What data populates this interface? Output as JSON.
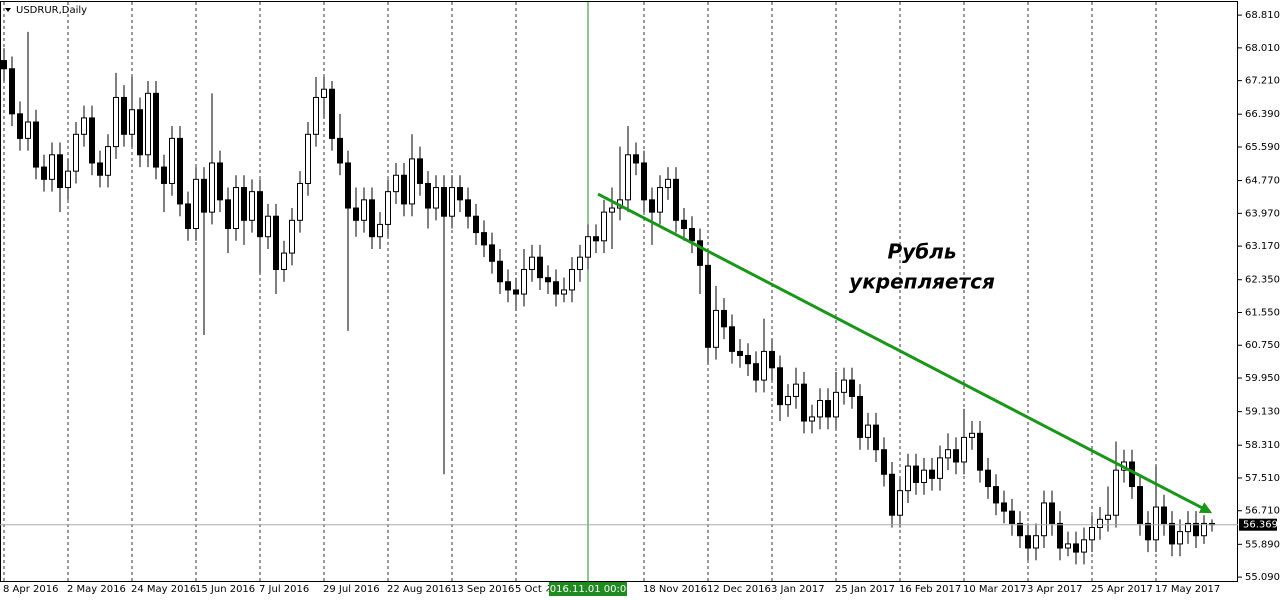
{
  "chart_data": {
    "type": "candlestick",
    "title": "USDRUR,Daily",
    "categories": [
      "8 Apr 2016",
      null,
      null,
      null,
      null,
      null,
      null,
      null,
      "2 May 2016",
      null,
      null,
      null,
      null,
      null,
      null,
      null,
      "24 May 2016",
      null,
      null,
      null,
      null,
      null,
      null,
      null,
      "15 Jun 2016",
      null,
      null,
      null,
      null,
      null,
      null,
      null,
      "7 Jul 2016",
      null,
      null,
      null,
      null,
      null,
      null,
      null,
      "29 Jul 2016",
      null,
      null,
      null,
      null,
      null,
      null,
      null,
      "22 Aug 2016",
      null,
      null,
      null,
      null,
      null,
      null,
      null,
      "13 Sep 2016",
      null,
      null,
      null,
      null,
      null,
      null,
      null,
      "5 Oct 2016",
      null,
      null,
      null,
      null,
      null,
      null,
      null,
      null,
      null,
      null,
      null,
      null,
      null,
      null,
      null,
      "18 Nov 2016",
      null,
      null,
      null,
      null,
      null,
      null,
      null,
      "12 Dec 2016",
      null,
      null,
      null,
      null,
      null,
      null,
      null,
      "3 Jan 2017",
      null,
      null,
      null,
      null,
      null,
      null,
      null,
      "25 Jan 2017",
      null,
      null,
      null,
      null,
      null,
      null,
      null,
      "16 Feb 2017",
      null,
      null,
      null,
      null,
      null,
      null,
      null,
      "10 Mar 2017",
      null,
      null,
      null,
      null,
      null,
      null,
      null,
      "3 Apr 2017",
      null,
      null,
      null,
      null,
      null,
      null,
      null,
      "25 Apr 2017",
      null,
      null,
      null,
      null,
      null,
      null,
      null,
      "17 May 2017",
      null,
      null,
      null,
      null,
      null,
      null,
      null
    ],
    "open": [
      67.7,
      67.5,
      66.4,
      65.8,
      66.2,
      65.1,
      64.8,
      65.4,
      64.6,
      65.0,
      65.9,
      66.3,
      65.2,
      64.9,
      65.6,
      66.8,
      65.9,
      66.5,
      65.4,
      66.9,
      65.1,
      64.7,
      65.8,
      64.2,
      63.6,
      64.8,
      64.0,
      65.2,
      64.3,
      63.6,
      64.6,
      63.8,
      64.5,
      63.4,
      63.9,
      62.6,
      63.0,
      63.8,
      64.7,
      65.9,
      66.8,
      67.0,
      65.8,
      65.2,
      64.1,
      63.8,
      64.3,
      63.4,
      63.7,
      64.5,
      64.9,
      64.2,
      65.3,
      64.7,
      64.1,
      64.6,
      63.9,
      64.6,
      64.3,
      63.9,
      63.5,
      63.2,
      62.8,
      62.3,
      62.1,
      62.0,
      62.6,
      62.9,
      62.4,
      62.3,
      62.0,
      62.1,
      62.6,
      62.9,
      63.4,
      63.3,
      64.0,
      64.1,
      64.3,
      65.4,
      65.2,
      64.3,
      64.0,
      64.6,
      64.8,
      63.8,
      63.6,
      63.3,
      62.7,
      60.7,
      61.6,
      61.2,
      60.6,
      60.5,
      60.3,
      59.9,
      60.6,
      60.2,
      59.3,
      59.5,
      59.8,
      58.9,
      59.0,
      59.4,
      59.0,
      59.6,
      59.9,
      59.5,
      58.5,
      58.8,
      58.2,
      57.6,
      56.6,
      57.2,
      57.8,
      57.4,
      57.7,
      57.5,
      58.0,
      58.2,
      57.9,
      58.5,
      58.6,
      57.7,
      57.3,
      56.9,
      56.7,
      56.4,
      56.1,
      55.8,
      56.1,
      56.9,
      56.4,
      55.8,
      55.9,
      55.7,
      56.0,
      56.3,
      56.5,
      56.6,
      57.7,
      57.9,
      57.3,
      56.4,
      56.0,
      56.8,
      56.4,
      55.9,
      56.2,
      56.4,
      56.1,
      56.4
    ],
    "high": [
      68.0,
      67.8,
      66.7,
      68.4,
      66.5,
      65.4,
      65.7,
      65.7,
      65.3,
      66.2,
      66.6,
      66.6,
      65.5,
      65.9,
      67.4,
      67.1,
      67.3,
      66.8,
      67.2,
      67.2,
      65.4,
      66.1,
      66.1,
      64.5,
      65.1,
      65.1,
      66.9,
      65.5,
      64.6,
      64.9,
      64.9,
      64.8,
      64.8,
      64.2,
      64.2,
      63.3,
      64.1,
      65.0,
      66.2,
      67.3,
      67.3,
      67.2,
      66.4,
      65.5,
      64.6,
      64.6,
      64.6,
      64.0,
      64.8,
      65.2,
      65.2,
      65.9,
      65.6,
      65.0,
      64.9,
      64.9,
      64.9,
      64.9,
      64.6,
      64.2,
      63.8,
      63.5,
      63.1,
      62.6,
      62.4,
      63.1,
      63.2,
      63.2,
      62.7,
      62.6,
      62.4,
      62.9,
      63.2,
      63.7,
      63.7,
      64.3,
      64.6,
      65.6,
      66.1,
      65.7,
      65.5,
      64.6,
      64.9,
      65.1,
      65.1,
      64.1,
      63.9,
      63.6,
      63.0,
      62.2,
      61.9,
      61.5,
      60.9,
      60.8,
      60.6,
      61.4,
      60.9,
      60.5,
      59.8,
      60.2,
      60.1,
      59.3,
      59.7,
      59.7,
      60.1,
      60.2,
      60.2,
      59.8,
      59.1,
      59.1,
      58.5,
      57.9,
      57.5,
      58.1,
      58.1,
      58.0,
      58.0,
      58.3,
      58.6,
      58.5,
      59.2,
      58.9,
      58.9,
      58.0,
      57.6,
      57.2,
      57.0,
      56.7,
      56.4,
      56.4,
      57.2,
      57.2,
      56.7,
      56.2,
      56.2,
      56.3,
      56.6,
      56.8,
      57.3,
      58.4,
      58.2,
      58.2,
      57.6,
      56.7,
      57.8,
      57.1,
      56.7,
      56.5,
      56.7,
      56.7,
      56.6,
      56.5
    ],
    "low": [
      67.2,
      66.1,
      65.5,
      65.5,
      64.8,
      64.5,
      64.5,
      64.0,
      64.3,
      64.7,
      65.6,
      64.9,
      64.6,
      64.6,
      65.3,
      65.6,
      65.6,
      65.1,
      65.1,
      64.8,
      64.0,
      64.4,
      63.9,
      63.3,
      63.3,
      61.0,
      63.7,
      64.0,
      63.0,
      63.3,
      63.2,
      63.5,
      62.5,
      63.1,
      62.0,
      62.3,
      62.7,
      63.5,
      64.4,
      65.6,
      66.3,
      65.5,
      64.9,
      61.1,
      63.4,
      63.5,
      63.1,
      63.1,
      63.4,
      64.2,
      63.9,
      63.9,
      64.4,
      63.6,
      63.8,
      57.6,
      63.6,
      64.0,
      63.6,
      63.2,
      62.9,
      62.5,
      62.0,
      61.8,
      61.6,
      61.7,
      62.3,
      62.1,
      62.0,
      61.7,
      61.8,
      61.8,
      62.3,
      62.6,
      63.0,
      63.0,
      63.1,
      63.8,
      64.0,
      64.9,
      64.0,
      63.2,
      63.7,
      64.3,
      63.5,
      63.3,
      63.0,
      62.0,
      60.3,
      60.4,
      60.9,
      60.3,
      60.2,
      60.0,
      59.6,
      59.6,
      59.9,
      58.9,
      59.0,
      59.2,
      58.6,
      58.6,
      58.7,
      58.7,
      58.7,
      59.3,
      59.2,
      58.2,
      58.2,
      57.9,
      57.3,
      56.3,
      56.3,
      56.9,
      57.1,
      57.1,
      57.2,
      57.2,
      57.7,
      57.6,
      57.6,
      58.2,
      57.4,
      57.0,
      56.6,
      56.4,
      56.1,
      55.8,
      55.5,
      55.5,
      55.8,
      56.1,
      55.5,
      55.6,
      55.4,
      55.4,
      55.7,
      56.0,
      56.2,
      56.3,
      57.4,
      57.0,
      56.1,
      55.7,
      55.7,
      56.1,
      55.6,
      55.6,
      55.9,
      55.8,
      55.9,
      56.2
    ],
    "close": [
      67.5,
      66.4,
      65.8,
      66.2,
      65.1,
      64.8,
      65.4,
      64.6,
      65.0,
      65.9,
      66.3,
      65.2,
      64.9,
      65.6,
      66.8,
      65.9,
      66.5,
      65.4,
      66.9,
      65.1,
      64.7,
      65.8,
      64.2,
      63.6,
      64.8,
      64.0,
      65.2,
      64.3,
      63.6,
      64.6,
      63.8,
      64.5,
      63.4,
      63.9,
      62.6,
      63.0,
      63.8,
      64.7,
      65.9,
      66.8,
      67.0,
      65.8,
      65.2,
      64.1,
      63.8,
      64.3,
      63.4,
      63.7,
      64.5,
      64.9,
      64.2,
      65.3,
      64.7,
      64.1,
      64.6,
      63.9,
      64.6,
      64.3,
      63.9,
      63.5,
      63.2,
      62.8,
      62.3,
      62.1,
      62.0,
      62.6,
      62.9,
      62.4,
      62.3,
      62.0,
      62.1,
      62.6,
      62.9,
      63.4,
      63.3,
      64.0,
      64.1,
      64.3,
      65.4,
      65.2,
      64.3,
      64.0,
      64.6,
      64.8,
      63.8,
      63.6,
      63.3,
      62.7,
      60.7,
      61.6,
      61.2,
      60.6,
      60.5,
      60.3,
      59.9,
      60.6,
      60.2,
      59.3,
      59.5,
      59.8,
      58.9,
      59.0,
      59.4,
      59.0,
      59.6,
      59.9,
      59.5,
      58.5,
      58.8,
      58.2,
      57.6,
      56.6,
      57.2,
      57.8,
      57.4,
      57.7,
      57.5,
      58.0,
      58.2,
      57.9,
      58.5,
      58.6,
      57.7,
      57.3,
      56.9,
      56.7,
      56.4,
      56.1,
      55.8,
      56.1,
      56.9,
      56.4,
      55.8,
      55.9,
      55.7,
      56.0,
      56.3,
      56.5,
      56.6,
      57.7,
      57.9,
      57.3,
      56.4,
      56.0,
      56.8,
      56.4,
      55.9,
      56.2,
      56.4,
      56.1,
      56.4,
      56.369
    ],
    "ylim": [
      54.97,
      69.13
    ],
    "yticks": [
      {
        "value": 68.81,
        "label": "68.810"
      },
      {
        "value": 68.01,
        "label": "68.010"
      },
      {
        "value": 67.21,
        "label": "67.210"
      },
      {
        "value": 66.39,
        "label": "66.390"
      },
      {
        "value": 65.59,
        "label": "65.590"
      },
      {
        "value": 64.77,
        "label": "64.770"
      },
      {
        "value": 63.97,
        "label": "63.970"
      },
      {
        "value": 63.17,
        "label": "63.170"
      },
      {
        "value": 62.35,
        "label": "62.350"
      },
      {
        "value": 61.55,
        "label": "61.550"
      },
      {
        "value": 60.75,
        "label": "60.750"
      },
      {
        "value": 59.95,
        "label": "59.950"
      },
      {
        "value": 59.13,
        "label": "59.130"
      },
      {
        "value": 58.31,
        "label": "58.310"
      },
      {
        "value": 57.51,
        "label": "57.510"
      },
      {
        "value": 56.71,
        "label": "56.710"
      },
      {
        "value": 55.89,
        "label": "55.890"
      },
      {
        "value": 55.09,
        "label": "55.090"
      }
    ],
    "grid": true,
    "crosshair": {
      "label": "2016.11.01 00:00",
      "index": 73,
      "color": "#1f8a1f"
    },
    "annotation": [
      "Рубль",
      "укрепляется"
    ],
    "trendline": {
      "from": [
        74.25,
        64.44
      ],
      "to": [
        150.75,
        56.68
      ],
      "color": "#1a961a"
    }
  }
}
